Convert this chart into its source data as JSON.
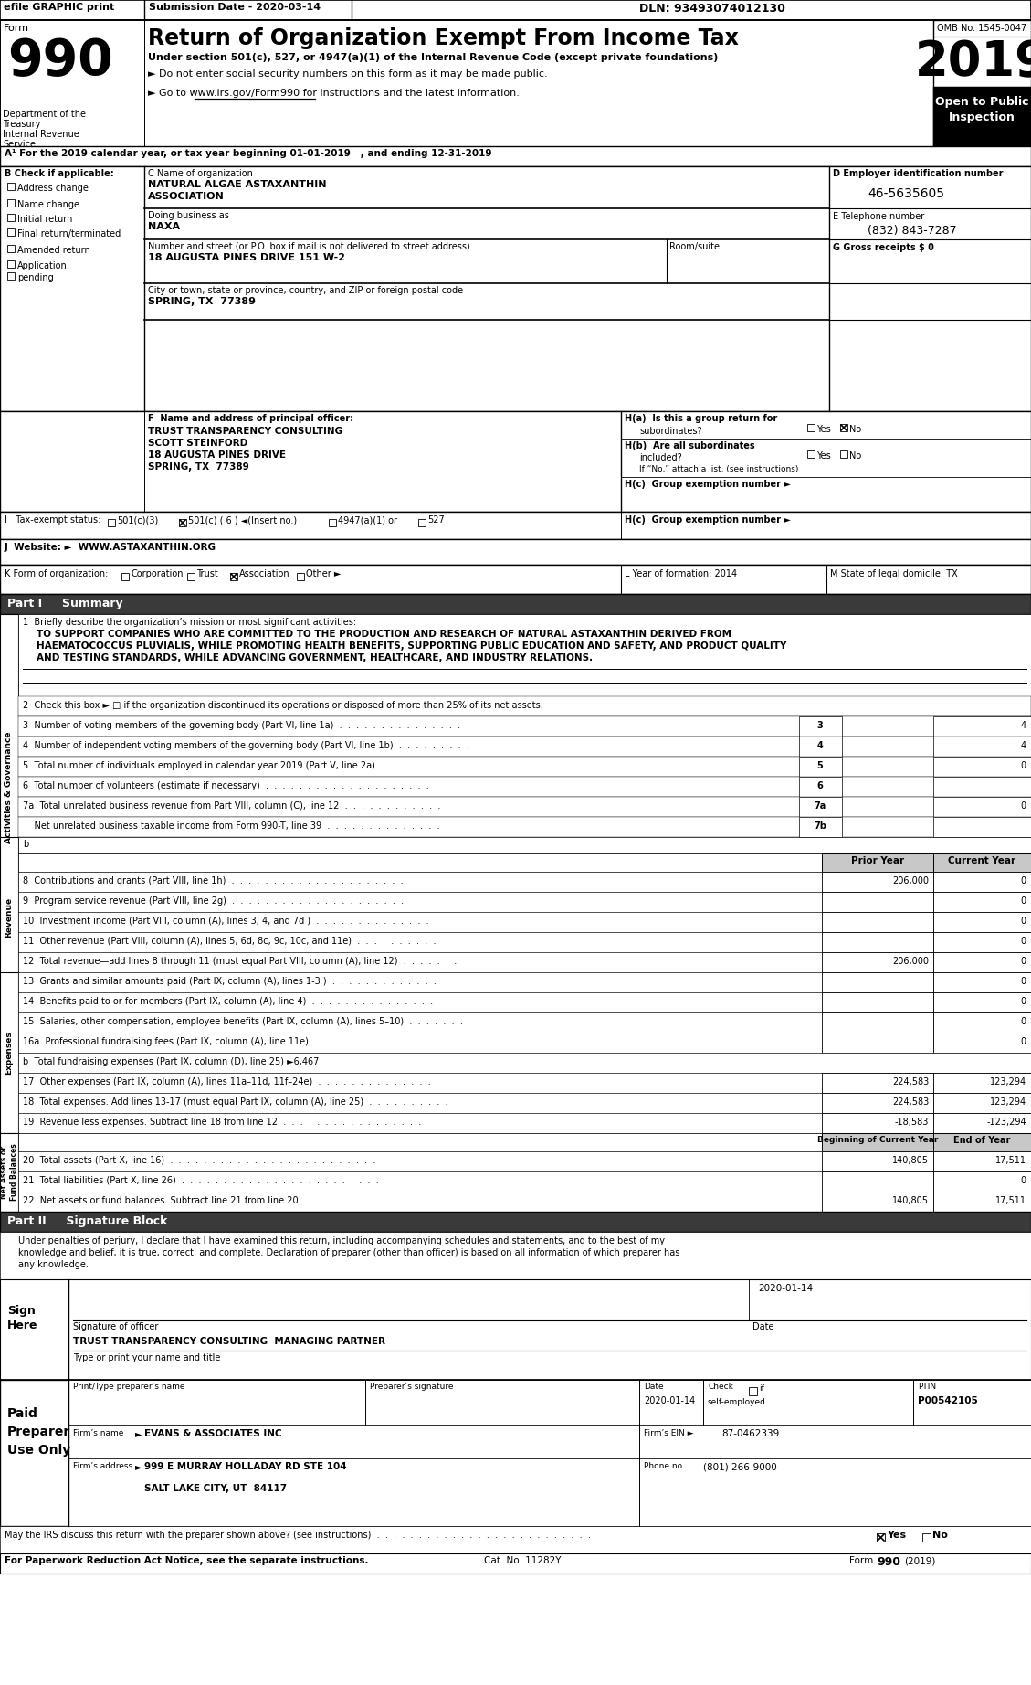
{
  "top_bar": {
    "efile": "efile GRAPHIC print",
    "submission": "Submission Date - 2020-03-14",
    "dln": "DLN: 93493074012130"
  },
  "form_header": {
    "form_label": "Form",
    "form_number": "990",
    "title": "Return of Organization Exempt From Income Tax",
    "subtitle1": "Under section 501(c), 527, or 4947(a)(1) of the Internal Revenue Code (except private foundations)",
    "subtitle2": "► Do not enter social security numbers on this form as it may be made public.",
    "subtitle3": "► Go to www.irs.gov/Form990 for instructions and the latest information.",
    "dept1": "Department of the",
    "dept2": "Treasury",
    "dept3": "Internal Revenue",
    "dept4": "Service",
    "omb": "OMB No. 1545-0047",
    "year": "2019",
    "open_label": "Open to Public",
    "inspection_label": "Inspection"
  },
  "section_a": {
    "label": "A¹ For the 2019 calendar year, or tax year beginning 01-01-2019   , and ending 12-31-2019"
  },
  "section_b": {
    "label": "B Check if applicable:",
    "items": [
      "Address change",
      "Name change",
      "Initial return",
      "Final return/terminated",
      "Amended return",
      "Application",
      "pending"
    ]
  },
  "section_c": {
    "name_label": "C Name of organization",
    "name": "NATURAL ALGAE ASTAXANTHIN",
    "name2": "ASSOCIATION",
    "dba_label": "Doing business as",
    "dba": "NAXA",
    "street_label": "Number and street (or P.O. box if mail is not delivered to street address)",
    "street": "18 AUGUSTA PINES DRIVE 151 W-2",
    "room_label": "Room/suite",
    "city_label": "City or town, state or province, country, and ZIP or foreign postal code",
    "city": "SPRING, TX  77389"
  },
  "section_d": {
    "label": "D Employer identification number",
    "ein": "46-5635605"
  },
  "section_e": {
    "label": "E Telephone number",
    "phone": "(832) 843-7287"
  },
  "section_g": {
    "label": "G Gross receipts $ 0"
  },
  "section_f": {
    "label": "F  Name and address of principal officer:",
    "name": "TRUST TRANSPARENCY CONSULTING",
    "name2": "SCOTT STEINFORD",
    "street": "18 AUGUSTA PINES DRIVE",
    "city": "SPRING, TX  77389"
  },
  "section_h": {
    "ha_label": "H(a)  Is this a group return for",
    "ha_sub": "subordinates?",
    "ha_yes": "Yes",
    "ha_no": "No",
    "ha_checked": "No",
    "hb_label": "H(b)  Are all subordinates",
    "hb_sub": "included?",
    "hb_yes": "Yes",
    "hb_no": "No",
    "hb_note": "If “No,” attach a list. (see instructions)",
    "hc_label": "H(c)  Group exemption number ►"
  },
  "section_i": {
    "label": "I   Tax-exempt status:",
    "options": [
      "501(c)(3)",
      "501(c) ( 6 ) ◄(Insert no.)",
      "4947(a)(1) or",
      "527"
    ],
    "checked_idx": 1
  },
  "section_j": {
    "label": "J  Website: ►  WWW.ASTAXANTHIN.ORG"
  },
  "section_k": {
    "label": "K Form of organization:",
    "options": [
      "Corporation",
      "Trust",
      "Association",
      "Other ►"
    ],
    "checked_idx": 2
  },
  "section_l": {
    "label": "L Year of formation: 2014"
  },
  "section_m": {
    "label": "M State of legal domicile: TX"
  },
  "part1": {
    "title": "Part I     Summary",
    "line1_label": "1  Briefly describe the organization’s mission or most significant activities:",
    "line1_text1": "TO SUPPORT COMPANIES WHO ARE COMMITTED TO THE PRODUCTION AND RESEARCH OF NATURAL ASTAXANTHIN DERIVED FROM",
    "line1_text2": "HAEMATOCOCCUS PLUVIALIS, WHILE PROMOTING HEALTH BENEFITS, SUPPORTING PUBLIC EDUCATION AND SAFETY, AND PRODUCT QUALITY",
    "line1_text3": "AND TESTING STANDARDS, WHILE ADVANCING GOVERNMENT, HEALTHCARE, AND INDUSTRY RELATIONS.",
    "activities_label": "Activities & Governance",
    "line2": "2  Check this box ► □ if the organization discontinued its operations or disposed of more than 25% of its net assets.",
    "line3_text": "3  Number of voting members of the governing body (Part VI, line 1a)  .  .  .  .  .  .  .  .  .  .  .  .  .  .  .",
    "line3_num": "3",
    "line3_val": "4",
    "line4_text": "4  Number of independent voting members of the governing body (Part VI, line 1b)  .  .  .  .  .  .  .  .  .",
    "line4_num": "4",
    "line4_val": "4",
    "line5_text": "5  Total number of individuals employed in calendar year 2019 (Part V, line 2a)  .  .  .  .  .  .  .  .  .  .",
    "line5_num": "5",
    "line5_val": "0",
    "line6_text": "6  Total number of volunteers (estimate if necessary)  .  .  .  .  .  .  .  .  .  .  .  .  .  .  .  .  .  .  .  .",
    "line6_num": "6",
    "line6_val": "",
    "line7a_text": "7a  Total unrelated business revenue from Part VIII, column (C), line 12  .  .  .  .  .  .  .  .  .  .  .  .",
    "line7a_num": "7a",
    "line7a_val": "0",
    "line7b_text": "    Net unrelated business taxable income from Form 990-T, line 39  .  .  .  .  .  .  .  .  .  .  .  .  .  .",
    "line7b_num": "7b",
    "line7b_val": "",
    "prior_year_label": "Prior Year",
    "current_year_label": "Current Year",
    "revenue_label": "Revenue",
    "line8_text": "8  Contributions and grants (Part VIII, line 1h)  .  .  .  .  .  .  .  .  .  .  .  .  .  .  .  .  .  .  .  .  .",
    "line8_prior": "206,000",
    "line8_curr": "0",
    "line9_text": "9  Program service revenue (Part VIII, line 2g)  .  .  .  .  .  .  .  .  .  .  .  .  .  .  .  .  .  .  .  .  .",
    "line9_prior": "",
    "line9_curr": "0",
    "line10_text": "10  Investment income (Part VIII, column (A), lines 3, 4, and 7d )  .  .  .  .  .  .  .  .  .  .  .  .  .  .",
    "line10_prior": "",
    "line10_curr": "0",
    "line11_text": "11  Other revenue (Part VIII, column (A), lines 5, 6d, 8c, 9c, 10c, and 11e)  .  .  .  .  .  .  .  .  .  .",
    "line11_prior": "",
    "line11_curr": "0",
    "line12_text": "12  Total revenue—add lines 8 through 11 (must equal Part VIII, column (A), line 12)  .  .  .  .  .  .  .",
    "line12_prior": "206,000",
    "line12_curr": "0",
    "expenses_label": "Expenses",
    "line13_text": "13  Grants and similar amounts paid (Part IX, column (A), lines 1-3 )  .  .  .  .  .  .  .  .  .  .  .  .  .",
    "line13_prior": "",
    "line13_curr": "0",
    "line14_text": "14  Benefits paid to or for members (Part IX, column (A), line 4)  .  .  .  .  .  .  .  .  .  .  .  .  .  .  .",
    "line14_prior": "",
    "line14_curr": "0",
    "line15_text": "15  Salaries, other compensation, employee benefits (Part IX, column (A), lines 5–10)  .  .  .  .  .  .  .",
    "line15_prior": "",
    "line15_curr": "0",
    "line16a_text": "16a  Professional fundraising fees (Part IX, column (A), line 11e)  .  .  .  .  .  .  .  .  .  .  .  .  .  .",
    "line16a_prior": "",
    "line16a_curr": "0",
    "line16b_text": "b  Total fundraising expenses (Part IX, column (D), line 25) ►6,467",
    "line17_text": "17  Other expenses (Part IX, column (A), lines 11a–11d, 11f–24e)  .  .  .  .  .  .  .  .  .  .  .  .  .  .",
    "line17_prior": "224,583",
    "line17_curr": "123,294",
    "line18_text": "18  Total expenses. Add lines 13-17 (must equal Part IX, column (A), line 25)  .  .  .  .  .  .  .  .  .  .",
    "line18_prior": "224,583",
    "line18_curr": "123,294",
    "line19_text": "19  Revenue less expenses. Subtract line 18 from line 12  .  .  .  .  .  .  .  .  .  .  .  .  .  .  .  .  .",
    "line19_prior": "-18,583",
    "line19_curr": "-123,294",
    "netassets_label": "Net Assets or\nFund Balances",
    "boc_label": "Beginning of Current Year",
    "eoy_label": "End of Year",
    "line20_text": "20  Total assets (Part X, line 16)  .  .  .  .  .  .  .  .  .  .  .  .  .  .  .  .  .  .  .  .  .  .  .  .  .",
    "line20_boc": "140,805",
    "line20_eoy": "17,511",
    "line21_text": "21  Total liabilities (Part X, line 26)  .  .  .  .  .  .  .  .  .  .  .  .  .  .  .  .  .  .  .  .  .  .  .  .",
    "line21_boc": "",
    "line21_eoy": "0",
    "line22_text": "22  Net assets or fund balances. Subtract line 21 from line 20  .  .  .  .  .  .  .  .  .  .  .  .  .  .  .",
    "line22_boc": "140,805",
    "line22_eoy": "17,511"
  },
  "part2": {
    "title": "Part II     Signature Block",
    "text1": "Under penalties of perjury, I declare that I have examined this return, including accompanying schedules and statements, and to the best of my",
    "text2": "knowledge and belief, it is true, correct, and complete. Declaration of preparer (other than officer) is based on all information of which preparer has",
    "text3": "any knowledge.",
    "sign_label1": "Sign",
    "sign_label2": "Here",
    "sig_line_label": "Signature of officer",
    "date_value": "2020-01-14",
    "date_label": "Date",
    "title_value": "TRUST TRANSPARENCY CONSULTING  MANAGING PARTNER",
    "title_label": "Type or print your name and title",
    "preparer_name_label": "Print/Type preparer’s name",
    "preparer_sig_label": "Preparer’s signature",
    "date2_label": "Date",
    "date2_value": "2020-01-14",
    "check_label": "Check",
    "check_box_label": "if",
    "selfemployed_label": "self-employed",
    "ptin_label": "PTIN",
    "ptin_value": "P00542105",
    "firm_name_label": "Firm’s name",
    "firm_name_arrow": "►",
    "firm_name": "EVANS & ASSOCIATES INC",
    "firm_ein_label": "Firm’s EIN ►",
    "firm_ein": "87-0462339",
    "firm_addr_label": "Firm’s address",
    "firm_addr_arrow": "►",
    "firm_addr": "999 E MURRAY HOLLADAY RD STE 104",
    "firm_city": "SALT LAKE CITY, UT  84117",
    "phone_label": "Phone no.",
    "phone": "(801) 266-9000"
  },
  "paid_preparer": {
    "line1": "Paid",
    "line2": "Preparer",
    "line3": "Use Only"
  },
  "footer": {
    "may_text": "May the IRS discuss this return with the preparer shown above? (see instructions)  .  .  .  .  .  .  .  .  .  .  .  .  .  .  .  .  .  .  .  .  .  .  .  .  .  .",
    "yes_label": "Yes",
    "no_label": "No",
    "paperwork": "For Paperwork Reduction Act Notice, see the separate instructions.",
    "cat": "Cat. No. 11282Y",
    "form_label": "Form",
    "form_num": "990",
    "form_year": "(2019)"
  }
}
